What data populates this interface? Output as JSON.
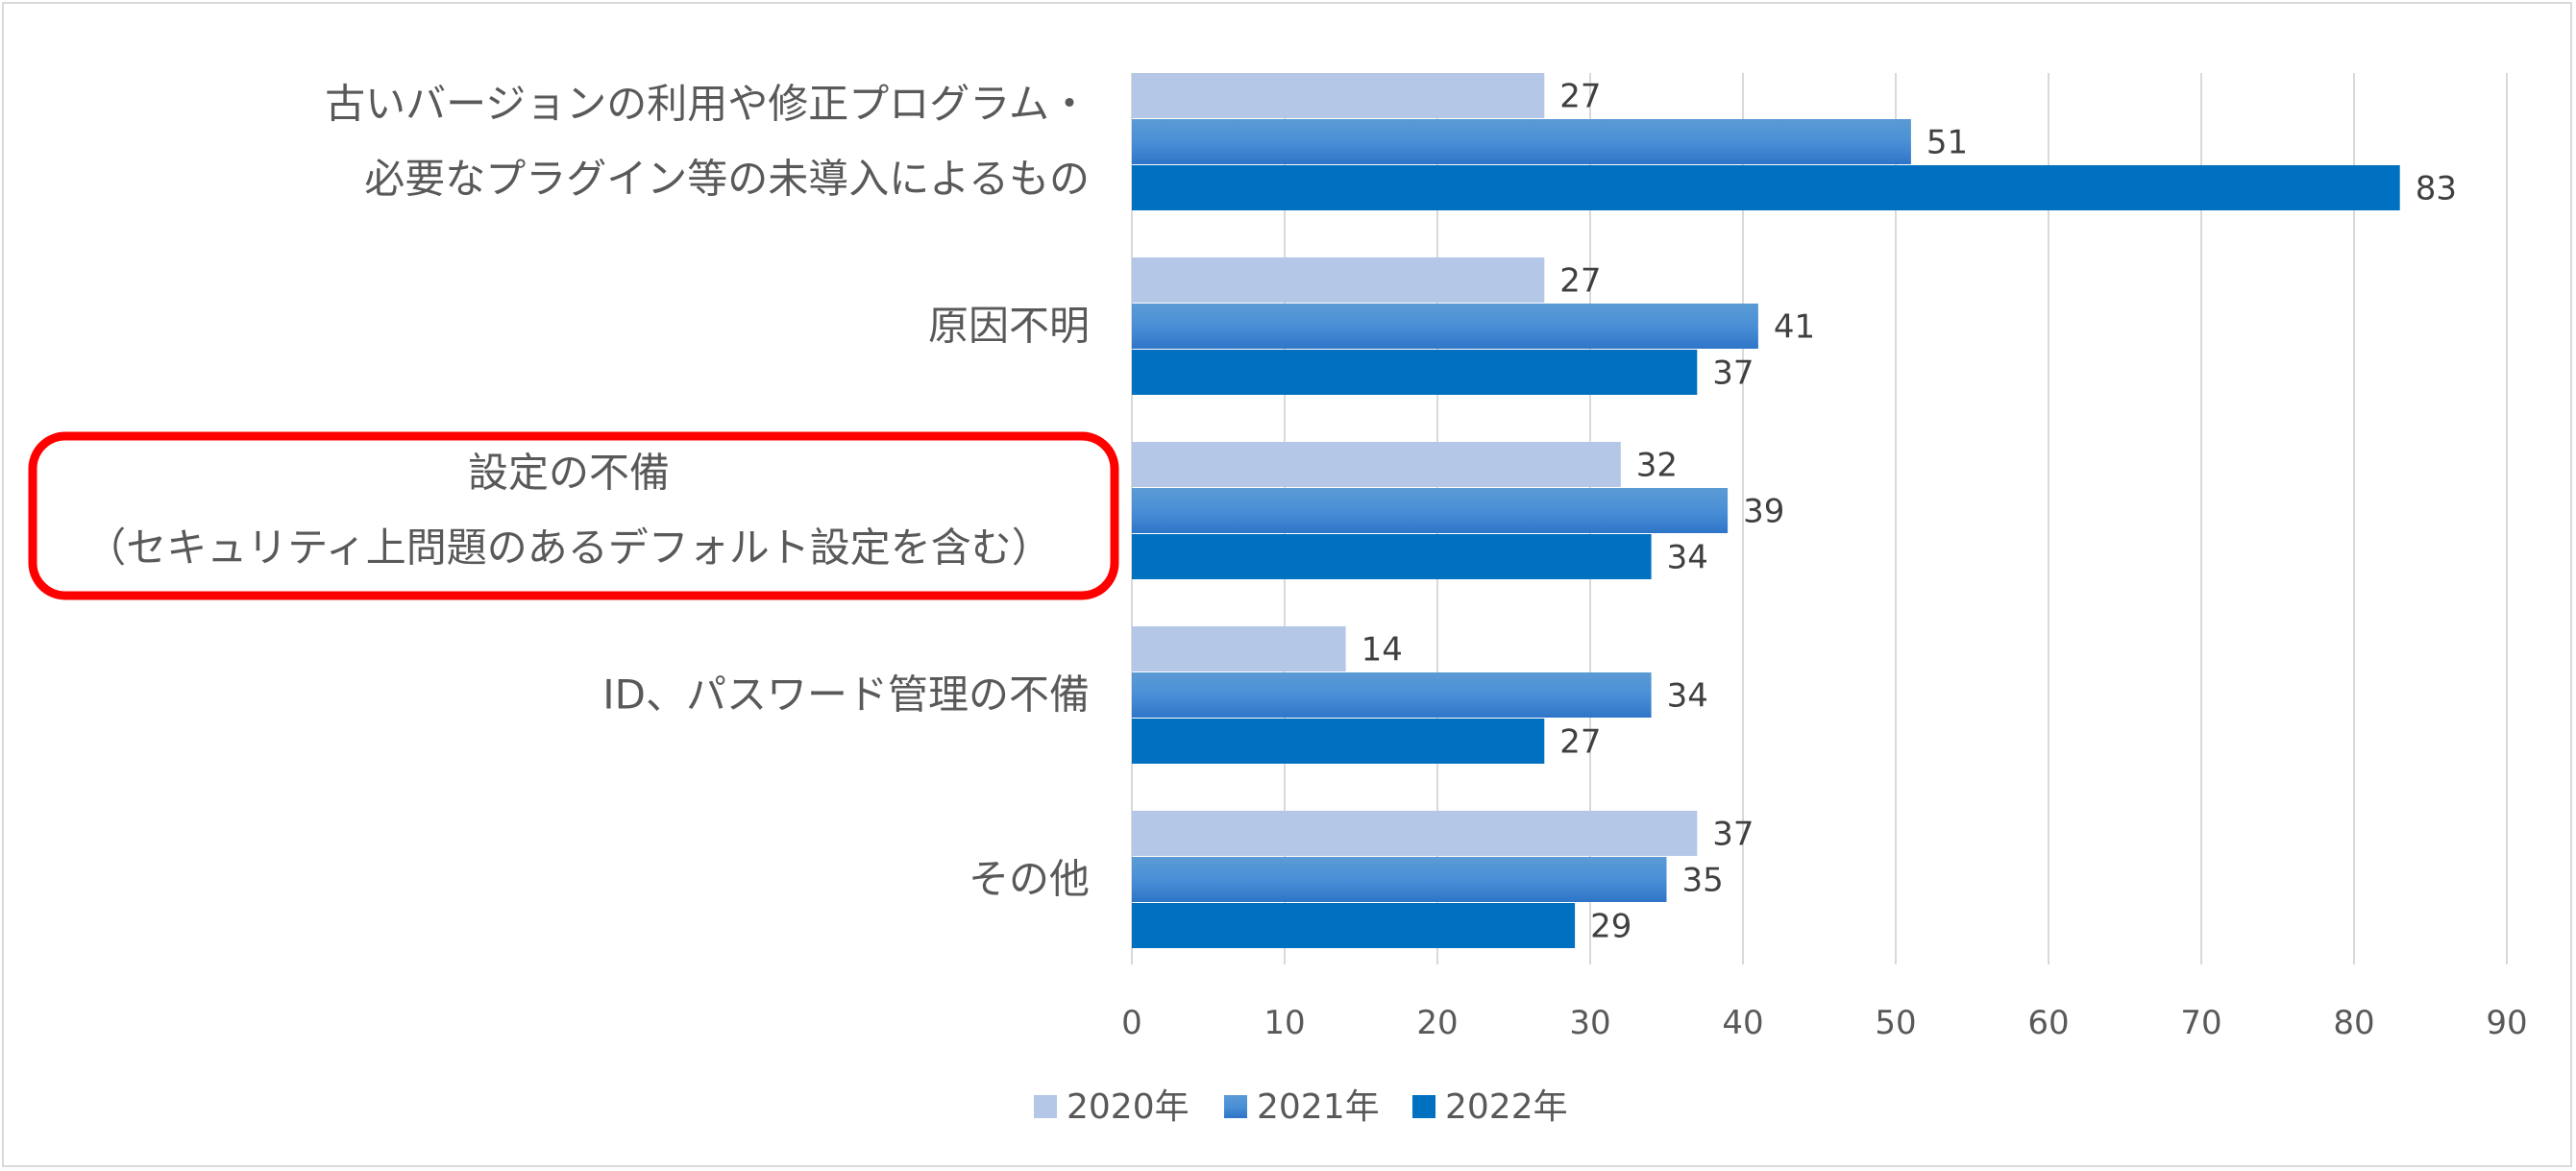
{
  "chart_data": {
    "type": "bar",
    "orientation": "horizontal",
    "categories": [
      [
        "古いバージョンの利用や修正プログラム・",
        "必要なプラグイン等の未導入によるもの"
      ],
      [
        "原因不明"
      ],
      [
        "設定の不備",
        "（セキュリティ上問題のあるデフォルト設定を含む）"
      ],
      [
        "ID、パスワード管理の不備"
      ],
      [
        "その他"
      ]
    ],
    "series": [
      {
        "name": "2020年",
        "color": "#b4c7e7",
        "values": [
          27,
          27,
          32,
          14,
          37
        ]
      },
      {
        "name": "2021年",
        "color": "#5b9bd5",
        "values": [
          51,
          41,
          39,
          34,
          35
        ]
      },
      {
        "name": "2022年",
        "color": "#0070c0",
        "values": [
          83,
          37,
          34,
          27,
          29
        ]
      }
    ],
    "xlim": [
      0,
      90
    ],
    "xticks": [
      0,
      10,
      20,
      30,
      40,
      50,
      60,
      70,
      80,
      90
    ],
    "grid": true,
    "legend": "bottom",
    "highlight": {
      "category_index": 2,
      "color": "#ff0000"
    }
  }
}
